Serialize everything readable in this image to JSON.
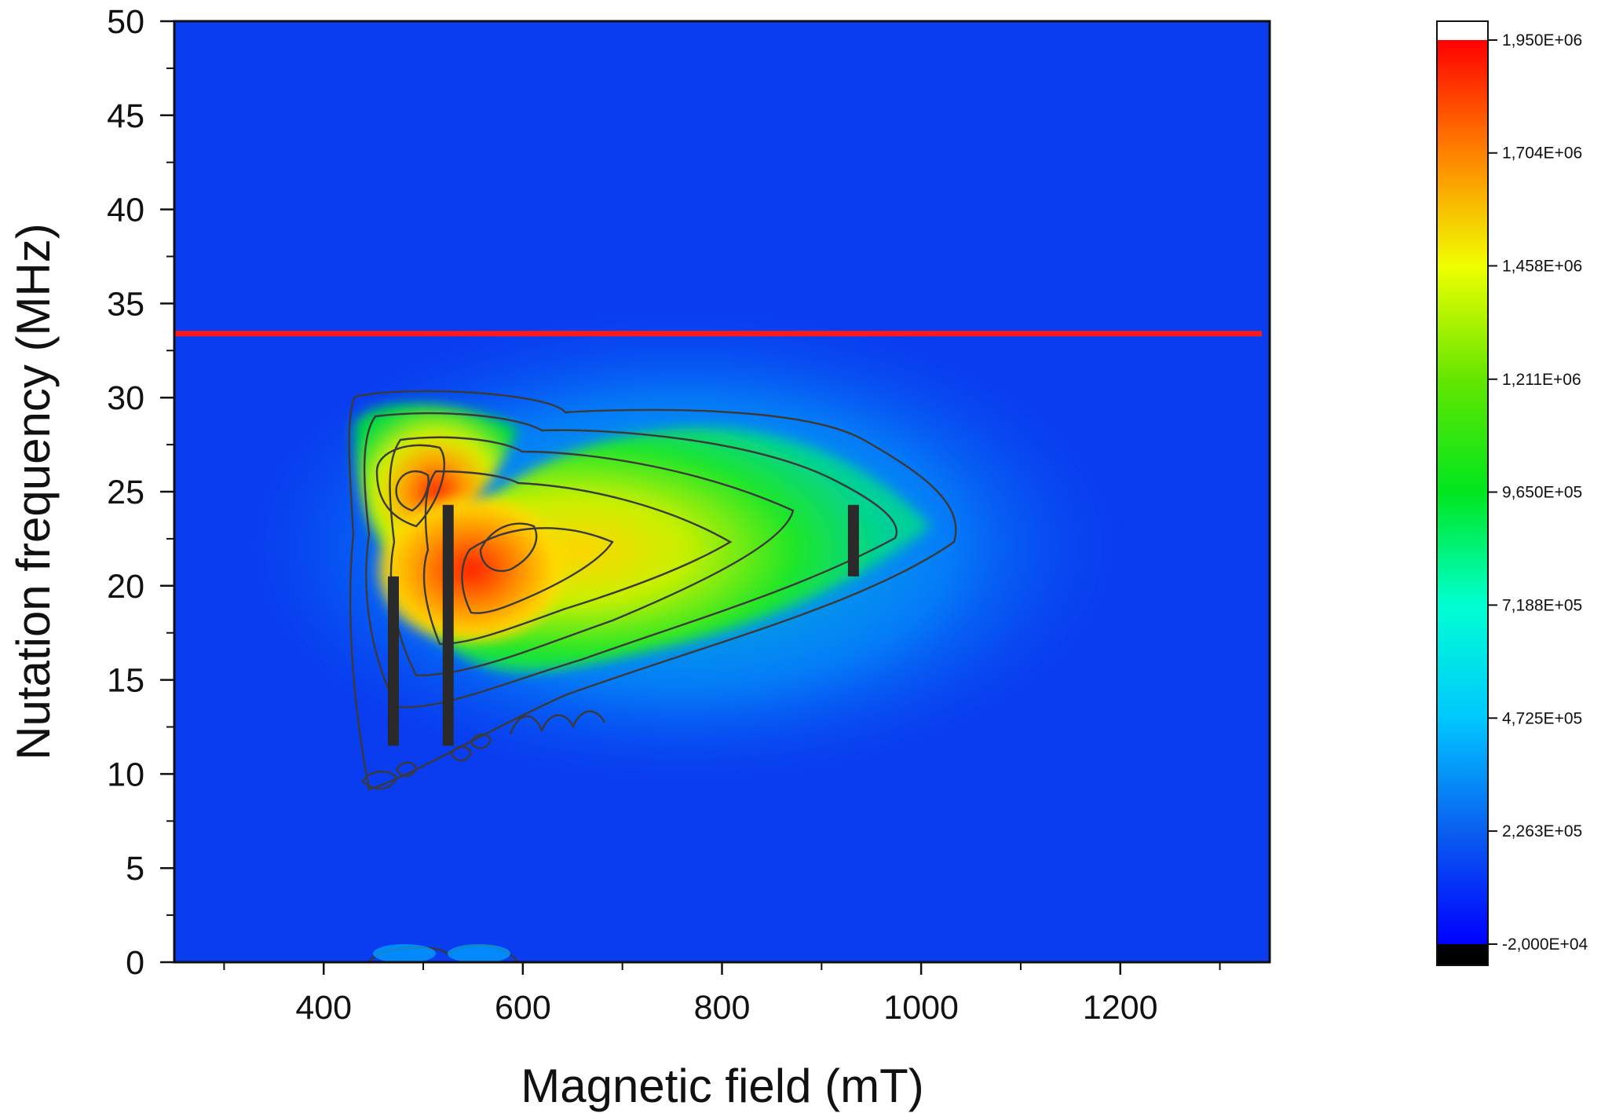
{
  "chart_data": {
    "type": "heatmap",
    "xlabel": "Magnetic field (mT)",
    "ylabel": "Nutation frequency (MHz)",
    "xlim": [
      250,
      1350
    ],
    "ylim": [
      0,
      50
    ],
    "x_ticks": [
      400,
      600,
      800,
      1000,
      1200
    ],
    "x_tick_labels": [
      "400",
      "600",
      "800",
      "1000",
      "1200"
    ],
    "x_minor_ticks": [
      300,
      500,
      700,
      900,
      1100,
      1300
    ],
    "y_ticks": [
      0,
      5,
      10,
      15,
      20,
      25,
      30,
      35,
      40,
      45,
      50
    ],
    "y_tick_labels": [
      "0",
      "5",
      "10",
      "15",
      "20",
      "25",
      "30",
      "35",
      "40",
      "45",
      "50"
    ],
    "grid": false,
    "colorbar": {
      "min": -20000,
      "max": 1950000,
      "ticks": [
        -20000,
        226300,
        472500,
        718800,
        965000,
        1211000,
        1458000,
        1704000,
        1950000
      ],
      "tick_labels": [
        "-2,000E+04",
        "2,263E+05",
        "4,725E+05",
        "7,188E+05",
        "9,650E+05",
        "1,211E+06",
        "1,458E+06",
        "1,704E+06",
        "1,950E+06"
      ],
      "colormap": [
        "#0000ff",
        "#0a5ff0",
        "#00c8ff",
        "#00ffd2",
        "#00e61e",
        "#64e600",
        "#f0ff00",
        "#ff8200",
        "#ff0000"
      ],
      "under_color": "#000000",
      "over_color": "#ffffff",
      "placement": "right"
    },
    "features": [
      {
        "type": "peak",
        "x": 495,
        "y": 24,
        "value": 1950000
      },
      {
        "type": "peak",
        "x": 545,
        "y": 20.5,
        "value": 1850000
      },
      {
        "type": "ridge",
        "x": 740,
        "y": 22,
        "value": 1350000
      }
    ],
    "reference_lines": [
      {
        "orientation": "horizontal",
        "y": 33.4,
        "color": "#ff1a1a"
      }
    ],
    "markers": [
      {
        "x": 470,
        "y_range": [
          11.5,
          20.5
        ],
        "color": "#2a2a2a"
      },
      {
        "x": 525,
        "y_range": [
          11.5,
          24.3
        ],
        "color": "#2a2a2a"
      },
      {
        "x": 932,
        "y_range": [
          20.5,
          24.3
        ],
        "color": "#2a2a2a"
      }
    ]
  }
}
